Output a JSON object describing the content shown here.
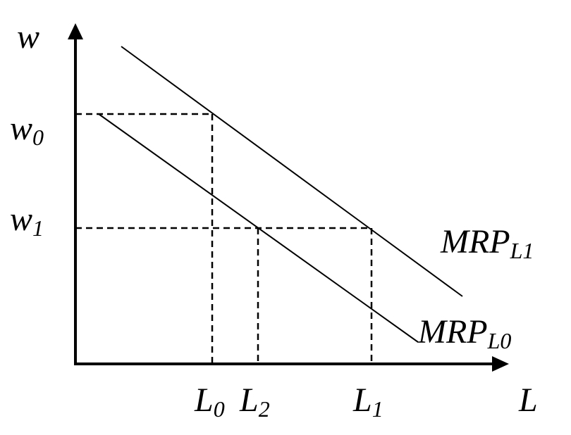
{
  "axes": {
    "y_label": "w",
    "x_label": "L"
  },
  "wages": [
    {
      "main": "w",
      "sub": "0"
    },
    {
      "main": "w",
      "sub": "1"
    }
  ],
  "quantities": [
    {
      "main": "L",
      "sub": "0"
    },
    {
      "main": "L",
      "sub": "2"
    },
    {
      "main": "L",
      "sub": "1"
    }
  ],
  "curves": [
    {
      "main": "MRP",
      "sub": "L1"
    },
    {
      "main": "MRP",
      "sub": "L0"
    }
  ],
  "colors": {
    "ink": "#000000",
    "background": "#ffffff"
  }
}
